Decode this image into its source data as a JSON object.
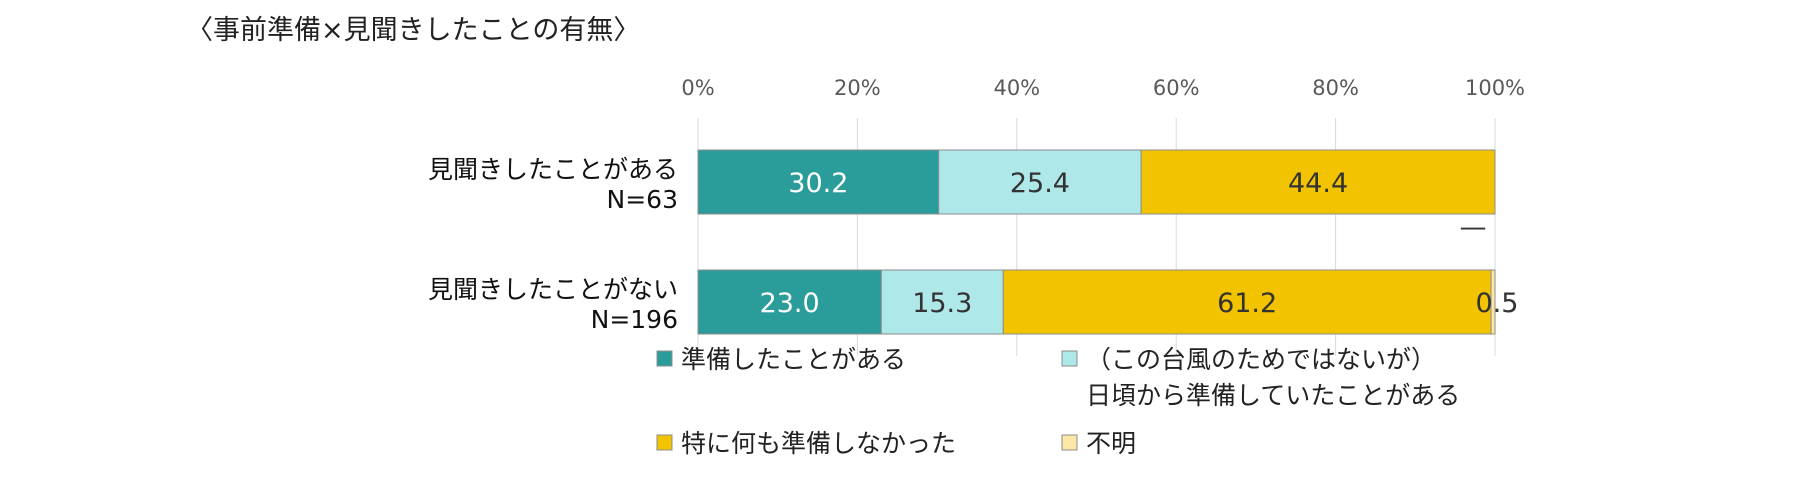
{
  "title": "〈事前準備×見聞きしたことの有無〉",
  "chart_data": {
    "type": "bar",
    "orientation": "horizontal",
    "stacked": true,
    "xlim": [
      0,
      100
    ],
    "x_ticks": [
      "0%",
      "20%",
      "40%",
      "60%",
      "80%",
      "100%"
    ],
    "grid": true,
    "legend_position": "bottom",
    "categories": [
      {
        "label": "見聞きしたことがある",
        "n": "N=63"
      },
      {
        "label": "見聞きしたことがない",
        "n": "N=196"
      }
    ],
    "series": [
      {
        "name": "準備したことがある",
        "color": "#2a9d9b",
        "values": [
          30.2,
          23.0
        ],
        "labels": [
          "30.2",
          "23.0"
        ]
      },
      {
        "name": "（この台風のためではないが）日頃から準備していたことがある",
        "name_lines": [
          "（この台風のためではないが）",
          "日頃から準備していたことがある"
        ],
        "color": "#aee8e9",
        "values": [
          25.4,
          15.3
        ],
        "labels": [
          "25.4",
          "15.3"
        ]
      },
      {
        "name": "特に何も準備しなかった",
        "color": "#f2c300",
        "values": [
          44.4,
          61.2
        ],
        "labels": [
          "44.4",
          "61.2"
        ]
      },
      {
        "name": "不明",
        "color": "#fbe8a6",
        "values": [
          0,
          0.5
        ],
        "labels": [
          "—",
          "0.5"
        ]
      }
    ]
  }
}
